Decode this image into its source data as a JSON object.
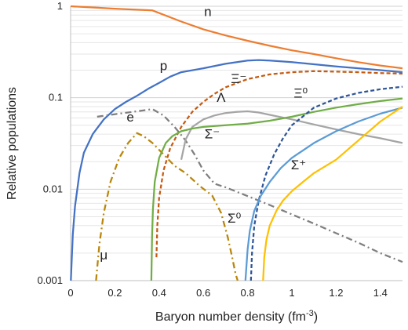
{
  "chart_data": {
    "type": "line",
    "xlabel": "Baryon number density (fm",
    "xlabel_sup": "-3",
    "xlabel_close": ")",
    "ylabel": "Relative populations",
    "x_scale": "linear",
    "y_scale": "log",
    "xlim": [
      0,
      1.5
    ],
    "ylim": [
      0.001,
      1
    ],
    "x_ticks": [
      "0",
      "0.2",
      "0.4",
      "0.6",
      "0.8",
      "1",
      "1.2",
      "1.4"
    ],
    "x_tick_values": [
      0,
      0.2,
      0.4,
      0.6,
      0.8,
      1,
      1.2,
      1.4
    ],
    "y_ticks": [
      "0.001",
      "0.01",
      "0.1",
      "1"
    ],
    "y_tick_values": [
      0.001,
      0.01,
      0.1,
      1
    ],
    "grid": "horizontal minor log gridlines",
    "legend": "none (labels placed next to curves)",
    "series": [
      {
        "name": "n",
        "color": "#ED7D31",
        "dash": "solid",
        "x": [
          0,
          0.1,
          0.2,
          0.37,
          0.5,
          0.6,
          0.7,
          0.8,
          0.9,
          1.0,
          1.1,
          1.2,
          1.3,
          1.4,
          1.5
        ],
        "y": [
          1.0,
          0.97,
          0.94,
          0.9,
          0.68,
          0.56,
          0.48,
          0.42,
          0.37,
          0.33,
          0.3,
          0.27,
          0.245,
          0.225,
          0.21
        ]
      },
      {
        "name": "p",
        "color": "#4472C4",
        "dash": "solid",
        "x": [
          0.001,
          0.01,
          0.02,
          0.04,
          0.06,
          0.1,
          0.15,
          0.2,
          0.25,
          0.3,
          0.35,
          0.4,
          0.45,
          0.5,
          0.6,
          0.7,
          0.8,
          0.85,
          0.9,
          1.0,
          1.1,
          1.2,
          1.3,
          1.4,
          1.5
        ],
        "y": [
          0.001,
          0.0032,
          0.0065,
          0.015,
          0.025,
          0.04,
          0.058,
          0.075,
          0.09,
          0.105,
          0.125,
          0.145,
          0.17,
          0.19,
          0.21,
          0.235,
          0.255,
          0.258,
          0.255,
          0.245,
          0.232,
          0.22,
          0.21,
          0.2,
          0.19
        ]
      },
      {
        "name": "e",
        "color": "#7F7F7F",
        "dash": "dashdot",
        "x": [
          0.12,
          0.2,
          0.3,
          0.37,
          0.42,
          0.47,
          0.52,
          0.56,
          0.6,
          0.65,
          0.7,
          0.8,
          0.9,
          1.0,
          1.1,
          1.2,
          1.3,
          1.4,
          1.5
        ],
        "y": [
          0.062,
          0.066,
          0.071,
          0.075,
          0.064,
          0.048,
          0.034,
          0.024,
          0.016,
          0.0115,
          0.0105,
          0.0084,
          0.0067,
          0.0053,
          0.0042,
          0.0033,
          0.0026,
          0.002,
          0.0016
        ]
      },
      {
        "name": "μ",
        "color": "#B8860B",
        "dash": "dashdot",
        "x": [
          0.115,
          0.13,
          0.15,
          0.18,
          0.22,
          0.26,
          0.3,
          0.33,
          0.37,
          0.42,
          0.47,
          0.52,
          0.58,
          0.64,
          0.68,
          0.71,
          0.73,
          0.745,
          0.755
        ],
        "y": [
          0.001,
          0.0025,
          0.0055,
          0.012,
          0.022,
          0.032,
          0.041,
          0.038,
          0.032,
          0.024,
          0.018,
          0.015,
          0.011,
          0.0085,
          0.0055,
          0.003,
          0.0018,
          0.0012,
          0.001
        ]
      },
      {
        "name": "Ξ⁻",
        "color": "#C55A11",
        "dash": "dash",
        "x": [
          0.388,
          0.392,
          0.4,
          0.42,
          0.45,
          0.5,
          0.55,
          0.6,
          0.65,
          0.7,
          0.8,
          0.9,
          1.0,
          1.1,
          1.2,
          1.3,
          1.4,
          1.5
        ],
        "y": [
          0.0018,
          0.004,
          0.008,
          0.016,
          0.028,
          0.048,
          0.07,
          0.09,
          0.11,
          0.13,
          0.16,
          0.18,
          0.19,
          0.195,
          0.193,
          0.19,
          0.186,
          0.183
        ]
      },
      {
        "name": "Λ",
        "color": "#A5A5A5",
        "dash": "solid",
        "x": [
          0.5,
          0.52,
          0.55,
          0.6,
          0.65,
          0.7,
          0.75,
          0.8,
          0.85,
          0.9,
          1.0,
          1.1,
          1.2,
          1.3,
          1.4,
          1.5
        ],
        "y": [
          0.021,
          0.035,
          0.048,
          0.058,
          0.064,
          0.068,
          0.07,
          0.071,
          0.069,
          0.065,
          0.058,
          0.051,
          0.045,
          0.04,
          0.036,
          0.032
        ]
      },
      {
        "name": "Σ⁻",
        "color": "#70AD47",
        "dash": "solid",
        "x": [
          0.365,
          0.368,
          0.372,
          0.38,
          0.4,
          0.43,
          0.46,
          0.5,
          0.55,
          0.6,
          0.7,
          0.8,
          0.9,
          1.0,
          1.1,
          1.2,
          1.3,
          1.4,
          1.5
        ],
        "y": [
          0.001,
          0.003,
          0.006,
          0.012,
          0.022,
          0.032,
          0.038,
          0.043,
          0.046,
          0.048,
          0.05,
          0.052,
          0.056,
          0.062,
          0.07,
          0.078,
          0.085,
          0.092,
          0.098
        ]
      },
      {
        "name": "Ξ⁰",
        "color": "#2F5597",
        "dash": "dash",
        "x": [
          0.815,
          0.82,
          0.83,
          0.85,
          0.88,
          0.92,
          0.96,
          1.0,
          1.1,
          1.2,
          1.3,
          1.4,
          1.5
        ],
        "y": [
          0.001,
          0.002,
          0.004,
          0.0075,
          0.014,
          0.024,
          0.036,
          0.05,
          0.078,
          0.098,
          0.113,
          0.124,
          0.132
        ]
      },
      {
        "name": "Σ⁰",
        "color": "#5B9BD5",
        "dash": "solid",
        "x": [
          0.79,
          0.8,
          0.81,
          0.83,
          0.86,
          0.9,
          0.95,
          1.0,
          1.1,
          1.2,
          1.3,
          1.4,
          1.5
        ],
        "y": [
          0.001,
          0.0022,
          0.0035,
          0.0058,
          0.0085,
          0.012,
          0.017,
          0.022,
          0.032,
          0.043,
          0.055,
          0.067,
          0.078
        ]
      },
      {
        "name": "Σ⁺",
        "color": "#FFC000",
        "dash": "solid",
        "x": [
          0.87,
          0.875,
          0.885,
          0.9,
          0.93,
          0.96,
          1.0,
          1.05,
          1.1,
          1.2,
          1.3,
          1.4,
          1.5
        ],
        "y": [
          0.001,
          0.0018,
          0.0028,
          0.004,
          0.0058,
          0.0075,
          0.0095,
          0.012,
          0.015,
          0.021,
          0.034,
          0.055,
          0.08
        ]
      }
    ],
    "labels": [
      {
        "text": "n",
        "x": 0.62,
        "y": 0.78
      },
      {
        "text": "p",
        "x": 0.42,
        "y": 0.2
      },
      {
        "text": "Ξ⁻",
        "x": 0.76,
        "y": 0.145
      },
      {
        "text": "Ξ⁰",
        "x": 1.04,
        "y": 0.1
      },
      {
        "text": "Λ",
        "x": 0.68,
        "y": 0.09
      },
      {
        "text": "e",
        "x": 0.27,
        "y": 0.055
      },
      {
        "text": "Σ⁻",
        "x": 0.64,
        "y": 0.036
      },
      {
        "text": "Σ⁺",
        "x": 1.03,
        "y": 0.0165
      },
      {
        "text": "Σ⁰",
        "x": 0.74,
        "y": 0.0043
      },
      {
        "text": "μ",
        "x": 0.15,
        "y": 0.0017
      }
    ]
  }
}
